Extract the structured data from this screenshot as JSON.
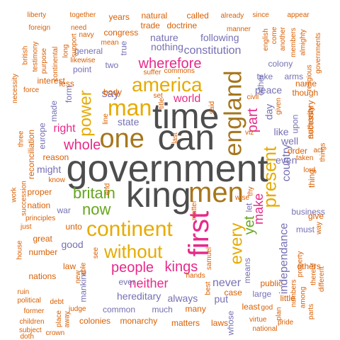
{
  "palette": {
    "dark_gray": "#4d4d4d",
    "orange": "#d95f02",
    "gold": "#e6ab02",
    "magenta": "#e7298a",
    "purple": "#7570b3",
    "brown": "#a6761d",
    "green": "#66a61e",
    "teal": "#1b9e77"
  },
  "words": [
    {
      "text": "government",
      "color": "dark_gray",
      "weight": 10
    },
    {
      "text": "time",
      "color": "dark_gray",
      "weight": 9
    },
    {
      "text": "can",
      "color": "dark_gray",
      "weight": 9
    },
    {
      "text": "king",
      "color": "dark_gray",
      "weight": 9
    },
    {
      "text": "men",
      "color": "brown",
      "weight": 8
    },
    {
      "text": "one",
      "color": "brown",
      "weight": 8
    },
    {
      "text": "england",
      "color": "brown",
      "weight": 7
    },
    {
      "text": "first",
      "color": "magenta",
      "weight": 7
    },
    {
      "text": "continent",
      "color": "gold",
      "weight": 7
    },
    {
      "text": "america",
      "color": "gold",
      "weight": 6
    },
    {
      "text": "man",
      "color": "gold",
      "weight": 6
    },
    {
      "text": "present",
      "color": "gold",
      "weight": 6
    },
    {
      "text": "without",
      "color": "gold",
      "weight": 6
    },
    {
      "text": "power",
      "color": "gold",
      "weight": 5
    },
    {
      "text": "britain",
      "color": "green",
      "weight": 5
    },
    {
      "text": "now",
      "color": "green",
      "weight": 5
    },
    {
      "text": "every",
      "color": "gold",
      "weight": 5
    },
    {
      "text": "yet",
      "color": "green",
      "weight": 4
    },
    {
      "text": "whole",
      "color": "magenta",
      "weight": 4
    },
    {
      "text": "wherefore",
      "color": "magenta",
      "weight": 4
    },
    {
      "text": "people",
      "color": "magenta",
      "weight": 4
    },
    {
      "text": "kings",
      "color": "magenta",
      "weight": 4
    },
    {
      "text": "part",
      "color": "magenta",
      "weight": 4
    },
    {
      "text": "neither",
      "color": "magenta",
      "weight": 3
    },
    {
      "text": "right",
      "color": "magenta",
      "weight": 3
    },
    {
      "text": "world",
      "color": "magenta",
      "weight": 3
    },
    {
      "text": "make",
      "color": "magenta",
      "weight": 3
    },
    {
      "text": "country",
      "color": "purple",
      "weight": 3
    },
    {
      "text": "independance",
      "color": "purple",
      "weight": 3
    },
    {
      "text": "might",
      "color": "purple",
      "weight": 3
    },
    {
      "text": "state",
      "color": "purple",
      "weight": 3
    },
    {
      "text": "say",
      "color": "purple",
      "weight": 3
    },
    {
      "text": "peace",
      "color": "purple",
      "weight": 3
    },
    {
      "text": "never",
      "color": "purple",
      "weight": 3
    },
    {
      "text": "good",
      "color": "purple",
      "weight": 3
    },
    {
      "text": "even",
      "color": "purple",
      "weight": 3
    },
    {
      "text": "constitution",
      "color": "purple",
      "weight": 3
    },
    {
      "text": "nothing",
      "color": "purple",
      "weight": 3
    },
    {
      "text": "nature",
      "color": "purple",
      "weight": 3
    },
    {
      "text": "always",
      "color": "purple",
      "weight": 3
    },
    {
      "text": "put",
      "color": "purple",
      "weight": 3
    },
    {
      "text": "hereditary",
      "color": "purple",
      "weight": 3
    },
    {
      "text": "mankind",
      "color": "purple",
      "weight": 3
    },
    {
      "text": "like",
      "color": "purple",
      "weight": 3
    },
    {
      "text": "means",
      "color": "purple",
      "weight": 3
    },
    {
      "text": "business",
      "color": "purple",
      "weight": 2
    },
    {
      "text": "day",
      "color": "purple",
      "weight": 2
    },
    {
      "text": "well",
      "color": "purple",
      "weight": 2
    },
    {
      "text": "war",
      "color": "purple",
      "weight": 2
    },
    {
      "text": "let",
      "color": "purple",
      "weight": 2
    },
    {
      "text": "general",
      "color": "purple",
      "weight": 2
    },
    {
      "text": "point",
      "color": "purple",
      "weight": 2
    },
    {
      "text": "two",
      "color": "purple",
      "weight": 2
    },
    {
      "text": "true",
      "color": "purple",
      "weight": 2
    },
    {
      "text": "following",
      "color": "purple",
      "weight": 2
    },
    {
      "text": "must",
      "color": "purple",
      "weight": 2
    },
    {
      "text": "ever",
      "color": "purple",
      "weight": 2
    },
    {
      "text": "colony",
      "color": "purple",
      "weight": 2
    },
    {
      "text": "take",
      "color": "purple",
      "weight": 2
    },
    {
      "text": "arms",
      "color": "purple",
      "weight": 2
    },
    {
      "text": "europe",
      "color": "purple",
      "weight": 2
    },
    {
      "text": "made",
      "color": "purple",
      "weight": 2
    },
    {
      "text": "form",
      "color": "purple",
      "weight": 2
    },
    {
      "text": "either",
      "color": "purple",
      "weight": 2
    },
    {
      "text": "upon",
      "color": "purple",
      "weight": 2
    },
    {
      "text": "whose",
      "color": "purple",
      "weight": 2
    },
    {
      "text": "large",
      "color": "purple",
      "weight": 2
    },
    {
      "text": "much",
      "color": "purple",
      "weight": 2
    },
    {
      "text": "common",
      "color": "purple",
      "weight": 2
    },
    {
      "text": "years",
      "color": "orange",
      "weight": 2
    },
    {
      "text": "congress",
      "color": "orange",
      "weight": 2
    },
    {
      "text": "trade",
      "color": "orange",
      "weight": 2
    },
    {
      "text": "doctrine",
      "color": "orange",
      "weight": 2
    },
    {
      "text": "called",
      "color": "orange",
      "weight": 2
    },
    {
      "text": "natural",
      "color": "orange",
      "weight": 2
    },
    {
      "text": "many",
      "color": "orange",
      "weight": 2
    },
    {
      "text": "matters",
      "color": "orange",
      "weight": 2
    },
    {
      "text": "monarchy",
      "color": "orange",
      "weight": 2
    },
    {
      "text": "colonies",
      "color": "orange",
      "weight": 2
    },
    {
      "text": "laws",
      "color": "orange",
      "weight": 2
    },
    {
      "text": "unto",
      "color": "orange",
      "weight": 2
    },
    {
      "text": "great",
      "color": "orange",
      "weight": 2
    },
    {
      "text": "number",
      "color": "orange",
      "weight": 2
    },
    {
      "text": "law",
      "color": "orange",
      "weight": 2
    },
    {
      "text": "others",
      "color": "orange",
      "weight": 2
    },
    {
      "text": "reason",
      "color": "orange",
      "weight": 2
    },
    {
      "text": "reconciliation",
      "color": "orange",
      "weight": 2
    },
    {
      "text": "proper",
      "color": "orange",
      "weight": 2
    },
    {
      "text": "nation",
      "color": "orange",
      "weight": 2
    },
    {
      "text": "nations",
      "color": "orange",
      "weight": 2
    },
    {
      "text": "order",
      "color": "orange",
      "weight": 2
    },
    {
      "text": "thing",
      "color": "orange",
      "weight": 2
    },
    {
      "text": "give",
      "color": "orange",
      "weight": 2
    },
    {
      "text": "authority",
      "color": "orange",
      "weight": 2
    },
    {
      "text": "though",
      "color": "orange",
      "weight": 2
    },
    {
      "text": "name",
      "color": "orange",
      "weight": 2
    },
    {
      "text": "necessary",
      "color": "orange",
      "weight": 2
    },
    {
      "text": "interest",
      "color": "orange",
      "weight": 2
    },
    {
      "text": "less",
      "color": "orange",
      "weight": 2
    },
    {
      "text": "body",
      "color": "orange",
      "weight": 2
    },
    {
      "text": "case",
      "color": "orange",
      "weight": 2
    },
    {
      "text": "public",
      "color": "orange",
      "weight": 2
    },
    {
      "text": "little",
      "color": "orange",
      "weight": 2
    },
    {
      "text": "least",
      "color": "orange",
      "weight": 2
    },
    {
      "text": "already",
      "color": "orange",
      "weight": 1
    },
    {
      "text": "since",
      "color": "orange",
      "weight": 1
    },
    {
      "text": "appear",
      "color": "orange",
      "weight": 1
    },
    {
      "text": "liberty",
      "color": "orange",
      "weight": 1
    },
    {
      "text": "together",
      "color": "orange",
      "weight": 1
    },
    {
      "text": "foreign",
      "color": "orange",
      "weight": 1
    },
    {
      "text": "need",
      "color": "orange",
      "weight": 1
    },
    {
      "text": "manner",
      "color": "orange",
      "weight": 1
    },
    {
      "text": "english",
      "color": "orange",
      "weight": 1
    },
    {
      "text": "another",
      "color": "orange",
      "weight": 1
    },
    {
      "text": "come",
      "color": "orange",
      "weight": 1
    },
    {
      "text": "members",
      "color": "orange",
      "weight": 1
    },
    {
      "text": "almighty",
      "color": "orange",
      "weight": 1
    },
    {
      "text": "religious",
      "color": "orange",
      "weight": 1
    },
    {
      "text": "governments",
      "color": "orange",
      "weight": 1
    },
    {
      "text": "navy",
      "color": "orange",
      "weight": 1
    },
    {
      "text": "mean",
      "color": "orange",
      "weight": 1
    },
    {
      "text": "long",
      "color": "orange",
      "weight": 1
    },
    {
      "text": "support",
      "color": "orange",
      "weight": 1
    },
    {
      "text": "british",
      "color": "orange",
      "weight": 1
    },
    {
      "text": "testimony",
      "color": "orange",
      "weight": 1
    },
    {
      "text": "purpose",
      "color": "orange",
      "weight": 1
    },
    {
      "text": "continental",
      "color": "orange",
      "weight": 1
    },
    {
      "text": "likewise",
      "color": "orange",
      "weight": 1
    },
    {
      "text": "suffer",
      "color": "orange",
      "weight": 1
    },
    {
      "text": "commons",
      "color": "orange",
      "weight": 1
    },
    {
      "text": "necessity",
      "color": "orange",
      "weight": 1
    },
    {
      "text": "force",
      "color": "orange",
      "weight": 1
    },
    {
      "text": "title",
      "color": "orange",
      "weight": 1
    },
    {
      "text": "set",
      "color": "orange",
      "weight": 1
    },
    {
      "text": "said",
      "color": "orange",
      "weight": 1
    },
    {
      "text": "civil",
      "color": "orange",
      "weight": 1
    },
    {
      "text": "given",
      "color": "orange",
      "weight": 1
    },
    {
      "text": "three",
      "color": "orange",
      "weight": 1
    },
    {
      "text": "succession",
      "color": "orange",
      "weight": 1
    },
    {
      "text": "line",
      "color": "orange",
      "weight": 1
    },
    {
      "text": "last",
      "color": "orange",
      "weight": 1
    },
    {
      "text": "viz",
      "color": "orange",
      "weight": 1
    },
    {
      "text": "act",
      "color": "orange",
      "weight": 1
    },
    {
      "text": "taken",
      "color": "orange",
      "weight": 1
    },
    {
      "text": "lord",
      "color": "orange",
      "weight": 1
    },
    {
      "text": "things",
      "color": "orange",
      "weight": 1
    },
    {
      "text": "work",
      "color": "orange",
      "weight": 1
    },
    {
      "text": "principles",
      "color": "orange",
      "weight": 1
    },
    {
      "text": "know",
      "color": "orange",
      "weight": 1
    },
    {
      "text": "end",
      "color": "orange",
      "weight": 1
    },
    {
      "text": "thy",
      "color": "orange",
      "weight": 1
    },
    {
      "text": "wise",
      "color": "orange",
      "weight": 1
    },
    {
      "text": "matter",
      "color": "orange",
      "weight": 1
    },
    {
      "text": "samuel",
      "color": "orange",
      "weight": 1
    },
    {
      "text": "just",
      "color": "orange",
      "weight": 1
    },
    {
      "text": "house",
      "color": "orange",
      "weight": 1
    },
    {
      "text": "see",
      "color": "orange",
      "weight": 1
    },
    {
      "text": "hands",
      "color": "orange",
      "weight": 1
    },
    {
      "text": "able",
      "color": "orange",
      "weight": 1
    },
    {
      "text": "new",
      "color": "orange",
      "weight": 1
    },
    {
      "text": "way",
      "color": "orange",
      "weight": 1
    },
    {
      "text": "property",
      "color": "orange",
      "weight": 1
    },
    {
      "text": "thereof",
      "color": "orange",
      "weight": 1
    },
    {
      "text": "different",
      "color": "orange",
      "weight": 1
    },
    {
      "text": "ruin",
      "color": "orange",
      "weight": 1
    },
    {
      "text": "political",
      "color": "orange",
      "weight": 1
    },
    {
      "text": "debt",
      "color": "orange",
      "weight": 1
    },
    {
      "text": "former",
      "color": "orange",
      "weight": 1
    },
    {
      "text": "children",
      "color": "orange",
      "weight": 1
    },
    {
      "text": "subject",
      "color": "orange",
      "weight": 1
    },
    {
      "text": "doth",
      "color": "orange",
      "weight": 1
    },
    {
      "text": "place",
      "color": "orange",
      "weight": 1
    },
    {
      "text": "away",
      "color": "orange",
      "weight": 1
    },
    {
      "text": "judge",
      "color": "orange",
      "weight": 1
    },
    {
      "text": "crown",
      "color": "orange",
      "weight": 1
    },
    {
      "text": "best",
      "color": "orange",
      "weight": 1
    },
    {
      "text": "plan",
      "color": "orange",
      "weight": 1
    },
    {
      "text": "god",
      "color": "orange",
      "weight": 1
    },
    {
      "text": "virtue",
      "color": "orange",
      "weight": 1
    },
    {
      "text": "national",
      "color": "orange",
      "weight": 1
    },
    {
      "text": "pride",
      "color": "orange",
      "weight": 1
    },
    {
      "text": "numbers",
      "color": "orange",
      "weight": 1
    },
    {
      "text": "among",
      "color": "orange",
      "weight": 1
    },
    {
      "text": "parts",
      "color": "orange",
      "weight": 1
    }
  ]
}
